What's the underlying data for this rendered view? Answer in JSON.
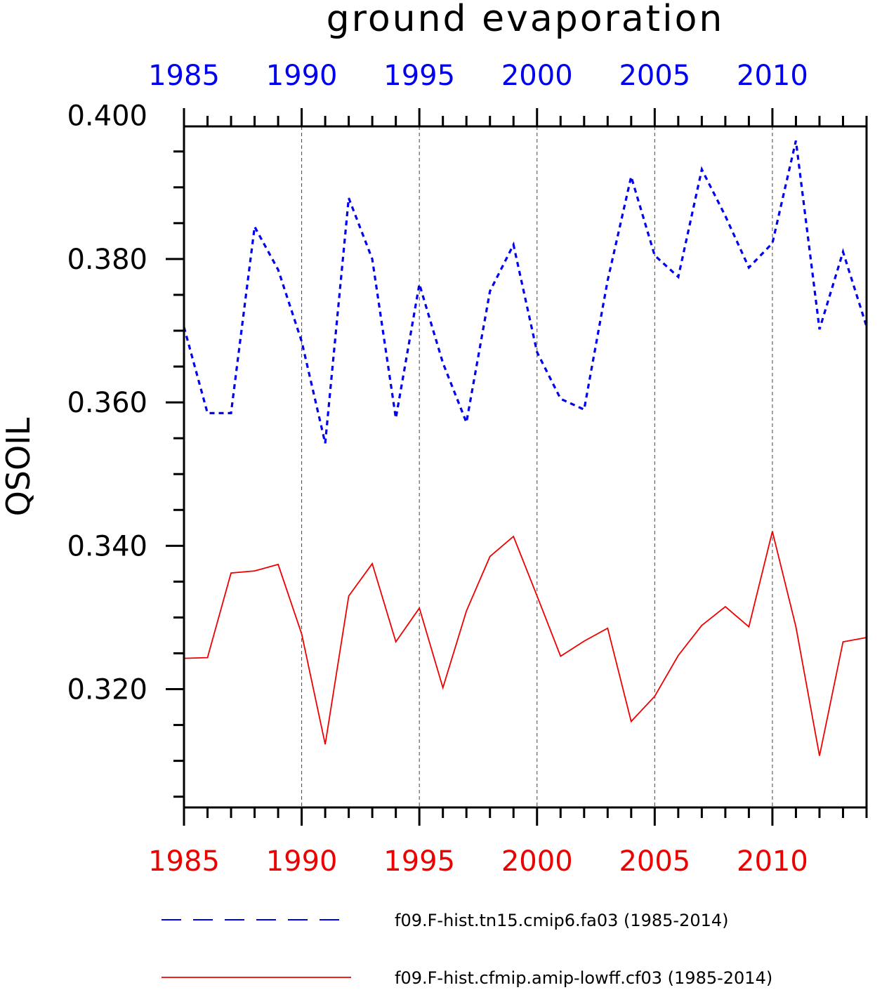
{
  "chart_data": {
    "type": "line",
    "title": "ground evaporation",
    "ylabel": "QSOIL",
    "xlim": [
      1985,
      2014
    ],
    "ylim": [
      0.3035,
      0.3985
    ],
    "yticks": [
      0.32,
      0.34,
      0.36,
      0.38,
      0.4
    ],
    "ytick_labels": [
      "0.320",
      "0.340",
      "0.360",
      "0.380",
      "0.400"
    ],
    "xticks": [
      1985,
      1990,
      1995,
      2000,
      2005,
      2010
    ],
    "xtick_labels": [
      "1985",
      "1990",
      "1995",
      "2000",
      "2005",
      "2010"
    ],
    "grid": "vertical dashed lines at labeled years",
    "legend_position": "below",
    "x": [
      1985,
      1986,
      1987,
      1988,
      1989,
      1990,
      1991,
      1992,
      1993,
      1994,
      1995,
      1996,
      1997,
      1998,
      1999,
      2000,
      2001,
      2002,
      2003,
      2004,
      2005,
      2006,
      2007,
      2008,
      2009,
      2010,
      2011,
      2012,
      2013,
      2014
    ],
    "series": [
      {
        "name": "f09.F-hist.tn15.cmip6.fa03 (1985-2014)",
        "color": "#0000ee",
        "style": "dashed",
        "values": [
          0.3705,
          0.3585,
          0.3585,
          0.3845,
          0.3785,
          0.3685,
          0.3543,
          0.3885,
          0.38,
          0.3578,
          0.3765,
          0.3655,
          0.3572,
          0.3755,
          0.382,
          0.367,
          0.3605,
          0.359,
          0.377,
          0.3915,
          0.3805,
          0.3775,
          0.3925,
          0.386,
          0.3788,
          0.3822,
          0.3965,
          0.3702,
          0.381,
          0.3706
        ]
      },
      {
        "name": "f09.F-hist.cfmip.amip-lowff.cf03 (1985-2014)",
        "color": "#ee0000",
        "style": "solid",
        "values": [
          0.3243,
          0.3244,
          0.3362,
          0.3365,
          0.3374,
          0.3277,
          0.3123,
          0.333,
          0.3375,
          0.3266,
          0.3313,
          0.3202,
          0.3309,
          0.3385,
          0.3413,
          0.333,
          0.3246,
          0.3267,
          0.3285,
          0.3155,
          0.319,
          0.3247,
          0.3289,
          0.3315,
          0.3287,
          0.342,
          0.3287,
          0.3107,
          0.3266,
          0.3272
        ]
      }
    ]
  }
}
